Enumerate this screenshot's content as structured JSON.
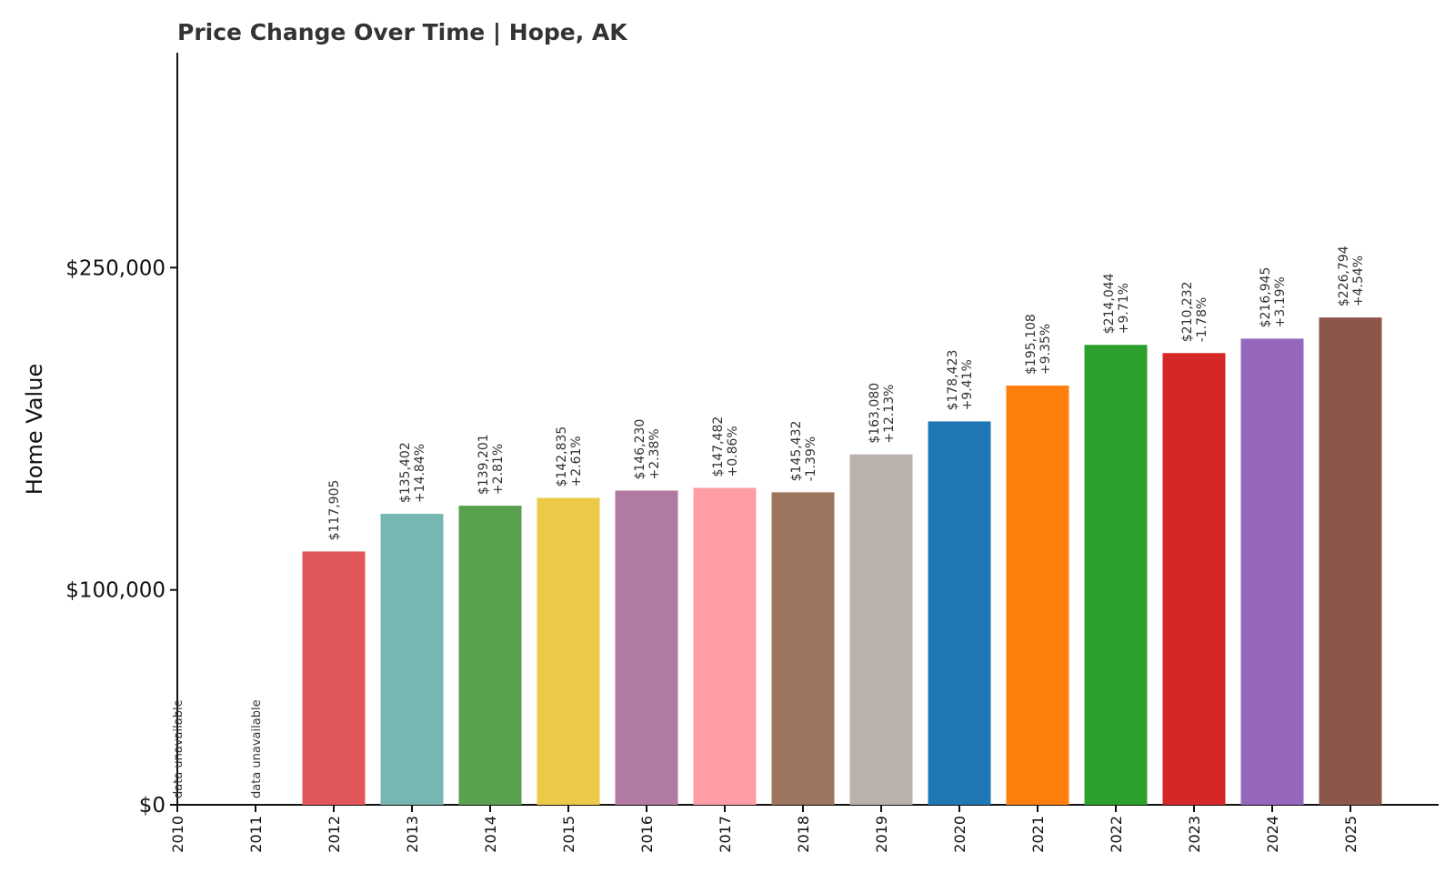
{
  "chart_data": {
    "type": "bar",
    "title": "Price Change Over Time | Hope, AK",
    "xlabel": "",
    "ylabel": "Home Value",
    "ylim": [
      0,
      350000
    ],
    "yticks": [
      0,
      100000,
      250000
    ],
    "ytick_labels": [
      "$0",
      "$100,000",
      "$250,000"
    ],
    "categories": [
      "2010",
      "2011",
      "2012",
      "2013",
      "2014",
      "2015",
      "2016",
      "2017",
      "2018",
      "2019",
      "2020",
      "2021",
      "2022",
      "2023",
      "2024",
      "2025"
    ],
    "values": [
      null,
      null,
      117905,
      135402,
      139201,
      142835,
      146230,
      147482,
      145432,
      163080,
      178423,
      195108,
      214044,
      210232,
      216945,
      226794
    ],
    "value_labels": [
      "",
      "",
      "$117,905",
      "$135,402",
      "$139,201",
      "$142,835",
      "$146,230",
      "$147,482",
      "$145,432",
      "$163,080",
      "$178,423",
      "$195,108",
      "$214,044",
      "$210,232",
      "$216,945",
      "$226,794"
    ],
    "change_labels": [
      "",
      "",
      "",
      "+14.84%",
      "+2.81%",
      "+2.61%",
      "+2.38%",
      "+0.86%",
      "-1.39%",
      "+12.13%",
      "+9.41%",
      "+9.35%",
      "+9.71%",
      "-1.78%",
      "+3.19%",
      "+4.54%"
    ],
    "unavailable_label": "data unavailable",
    "colors": [
      "#e15759",
      "#e15759",
      "#e15759",
      "#76b7b2",
      "#59a14f",
      "#edc948",
      "#b07aa1",
      "#ff9da7",
      "#9c755f",
      "#bab0ac",
      "#1f77b4",
      "#ff7f0e",
      "#2ca02c",
      "#d62728",
      "#9467bd",
      "#8c564b"
    ]
  }
}
